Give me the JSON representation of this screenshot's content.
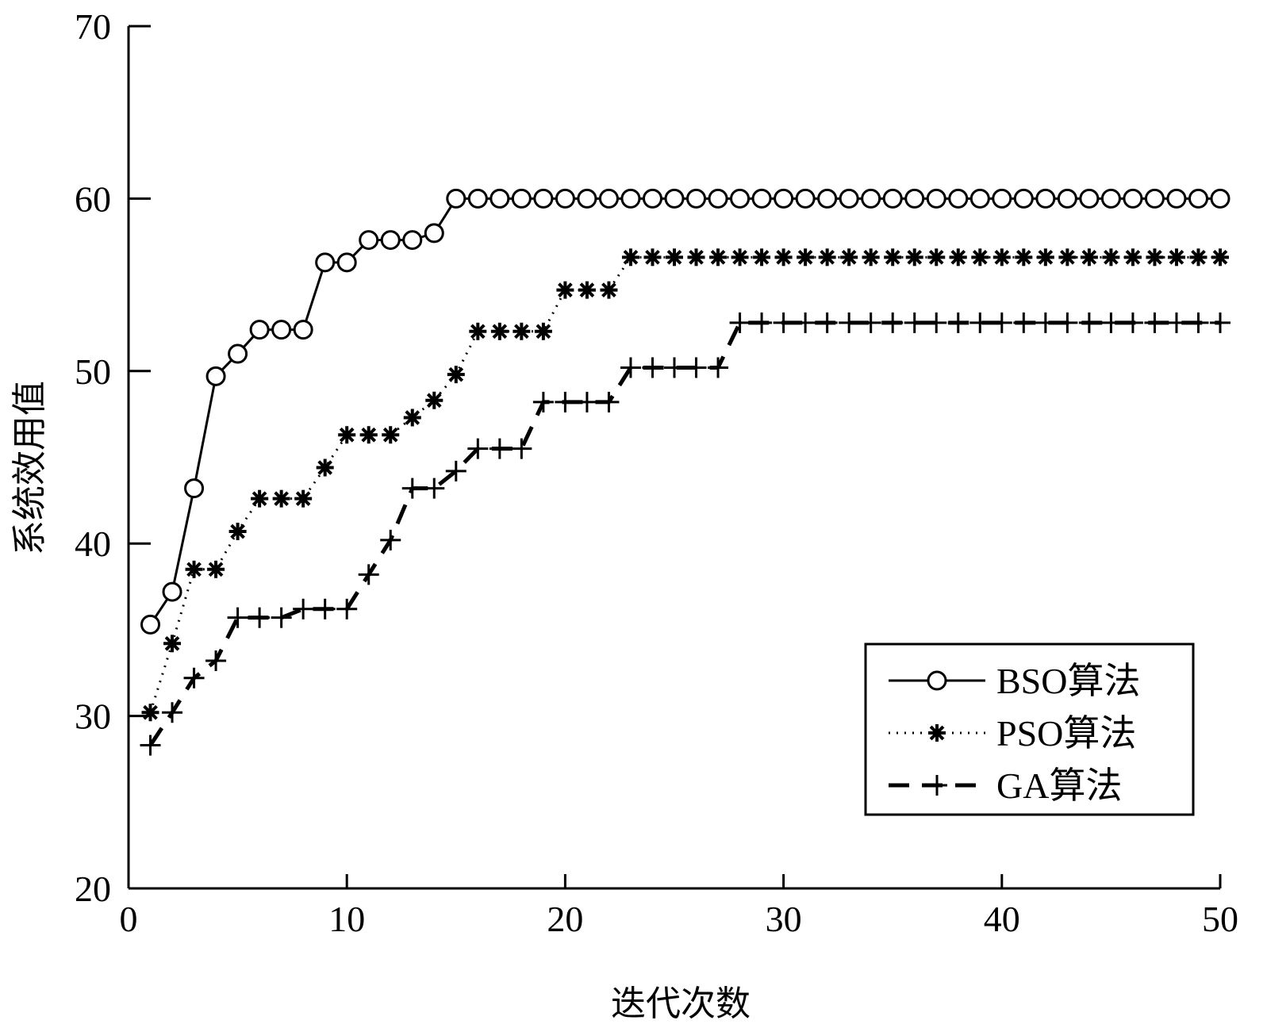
{
  "chart_data": {
    "type": "line",
    "xlabel": "迭代次数",
    "ylabel": "系统效用值",
    "xlim": [
      0,
      50
    ],
    "ylim": [
      20,
      70
    ],
    "xticks": [
      0,
      10,
      20,
      30,
      40,
      50
    ],
    "yticks": [
      20,
      30,
      40,
      50,
      60,
      70
    ],
    "grid": false,
    "legend_position": "bottom-right",
    "series": [
      {
        "name": "BSO算法",
        "marker": "circle",
        "line_style": "solid",
        "color": "#000000",
        "x": [
          1,
          2,
          3,
          4,
          5,
          6,
          7,
          8,
          9,
          10,
          11,
          12,
          13,
          14,
          15,
          16,
          17,
          18,
          19,
          20,
          21,
          22,
          23,
          24,
          25,
          26,
          27,
          28,
          29,
          30,
          31,
          32,
          33,
          34,
          35,
          36,
          37,
          38,
          39,
          40,
          41,
          42,
          43,
          44,
          45,
          46,
          47,
          48,
          49,
          50
        ],
        "y": [
          35.3,
          37.2,
          43.2,
          49.7,
          51.0,
          52.4,
          52.4,
          52.4,
          56.3,
          56.3,
          57.6,
          57.6,
          57.6,
          58.0,
          60.0,
          60.0,
          60.0,
          60.0,
          60.0,
          60.0,
          60.0,
          60.0,
          60.0,
          60.0,
          60.0,
          60.0,
          60.0,
          60.0,
          60.0,
          60.0,
          60.0,
          60.0,
          60.0,
          60.0,
          60.0,
          60.0,
          60.0,
          60.0,
          60.0,
          60.0,
          60.0,
          60.0,
          60.0,
          60.0,
          60.0,
          60.0,
          60.0,
          60.0,
          60.0,
          60.0
        ]
      },
      {
        "name": "PSO算法",
        "marker": "asterisk",
        "line_style": "dotted",
        "color": "#000000",
        "x": [
          1,
          2,
          3,
          4,
          5,
          6,
          7,
          8,
          9,
          10,
          11,
          12,
          13,
          14,
          15,
          16,
          17,
          18,
          19,
          20,
          21,
          22,
          23,
          24,
          25,
          26,
          27,
          28,
          29,
          30,
          31,
          32,
          33,
          34,
          35,
          36,
          37,
          38,
          39,
          40,
          41,
          42,
          43,
          44,
          45,
          46,
          47,
          48,
          49,
          50
        ],
        "y": [
          30.2,
          34.2,
          38.5,
          38.5,
          40.7,
          42.6,
          42.6,
          42.6,
          44.4,
          46.3,
          46.3,
          46.3,
          47.3,
          48.3,
          49.8,
          52.3,
          52.3,
          52.3,
          52.3,
          54.7,
          54.7,
          54.7,
          56.6,
          56.6,
          56.6,
          56.6,
          56.6,
          56.6,
          56.6,
          56.6,
          56.6,
          56.6,
          56.6,
          56.6,
          56.6,
          56.6,
          56.6,
          56.6,
          56.6,
          56.6,
          56.6,
          56.6,
          56.6,
          56.6,
          56.6,
          56.6,
          56.6,
          56.6,
          56.6,
          56.6
        ]
      },
      {
        "name": "GA算法",
        "marker": "plus",
        "line_style": "dashed",
        "color": "#000000",
        "x": [
          1,
          2,
          3,
          4,
          5,
          6,
          7,
          8,
          9,
          10,
          11,
          12,
          13,
          14,
          15,
          16,
          17,
          18,
          19,
          20,
          21,
          22,
          23,
          24,
          25,
          26,
          27,
          28,
          29,
          30,
          31,
          32,
          33,
          34,
          35,
          36,
          37,
          38,
          39,
          40,
          41,
          42,
          43,
          44,
          45,
          46,
          47,
          48,
          49,
          50
        ],
        "y": [
          28.3,
          30.2,
          32.2,
          33.2,
          35.7,
          35.7,
          35.7,
          36.2,
          36.2,
          36.2,
          38.2,
          40.2,
          43.2,
          43.2,
          44.2,
          45.5,
          45.5,
          45.5,
          48.2,
          48.2,
          48.2,
          48.2,
          50.2,
          50.2,
          50.2,
          50.2,
          50.2,
          52.8,
          52.8,
          52.8,
          52.8,
          52.8,
          52.8,
          52.8,
          52.8,
          52.8,
          52.8,
          52.8,
          52.8,
          52.8,
          52.8,
          52.8,
          52.8,
          52.8,
          52.8,
          52.8,
          52.8,
          52.8,
          52.8,
          52.8
        ]
      }
    ]
  }
}
